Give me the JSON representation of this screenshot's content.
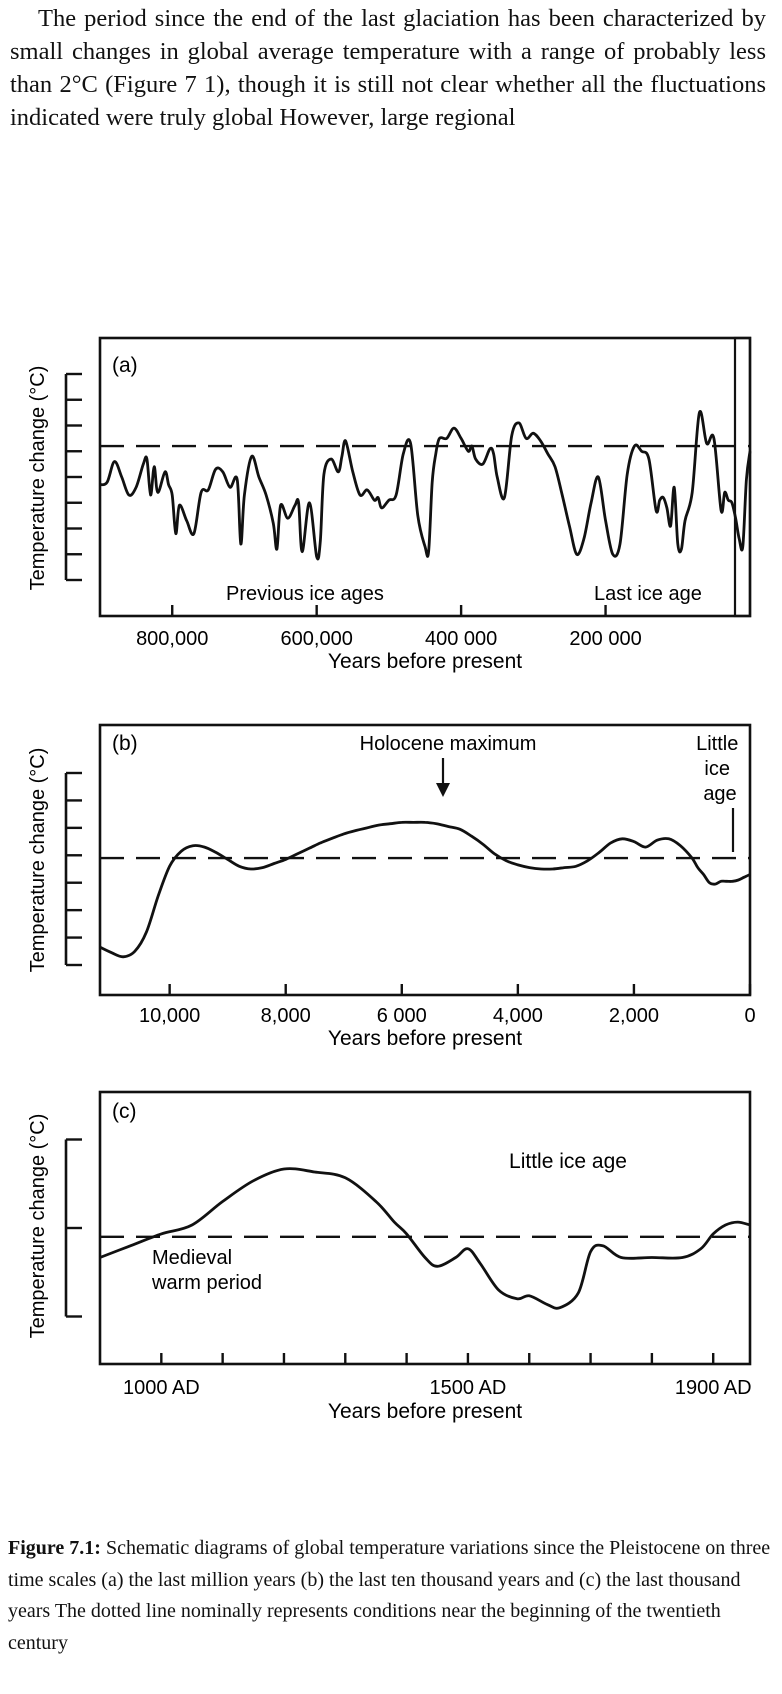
{
  "text": {
    "intro": "The period since the end of the last glaciation has been characterized by small changes in global average temperature with a range of probably less than 2°C (Figure 7 1), though it is still not clear whether all the fluctuations indicated were truly global  However, large regional",
    "caption_label": "Figure 7.1:",
    "caption_body": " Schematic diagrams of global temperature variations since the Pleistocene on three time scales  (a)  the last million years  (b)  the last ten thousand years  and  (c)  the last thousand years  The dotted line nominally represents conditions near the beginning of the twentieth century"
  },
  "chart_data": [
    {
      "type": "line",
      "panel_label": "(a)",
      "ylabel": "Temperature change (°C)",
      "xlabel": "Years before present",
      "x_reversed": true,
      "xlim": [
        900000,
        0
      ],
      "ylim": [
        0,
        8
      ],
      "y_ticks": [
        0,
        1,
        2,
        3,
        4,
        5,
        6,
        7,
        8
      ],
      "y_tick_labels_shown": false,
      "x_ticks": [
        800000,
        600000,
        400000,
        200000
      ],
      "x_tick_labels": [
        "800,000",
        "600,000",
        "400 000",
        "200 000"
      ],
      "reference_line": 5.2,
      "series_x": [
        900000,
        890000,
        880000,
        870000,
        860000,
        850000,
        840000,
        835000,
        830000,
        825000,
        820000,
        810000,
        805000,
        800000,
        795000,
        790000,
        780000,
        770000,
        760000,
        750000,
        740000,
        730000,
        720000,
        710000,
        705000,
        700000,
        690000,
        680000,
        670000,
        660000,
        655000,
        650000,
        640000,
        630000,
        625000,
        620000,
        610000,
        600000,
        595000,
        590000,
        580000,
        570000,
        565000,
        560000,
        550000,
        540000,
        530000,
        520000,
        515000,
        510000,
        500000,
        490000,
        480000,
        470000,
        460000,
        450000,
        445000,
        440000,
        435000,
        430000,
        420000,
        410000,
        400000,
        390000,
        385000,
        380000,
        370000,
        360000,
        355000,
        350000,
        340000,
        330000,
        320000,
        310000,
        300000,
        290000,
        280000,
        270000,
        260000,
        250000,
        240000,
        230000,
        220000,
        210000,
        200000,
        190000,
        180000,
        170000,
        160000,
        150000,
        140000,
        130000,
        125000,
        120000,
        115000,
        110000,
        105000,
        100000,
        95000,
        90000,
        80000,
        70000,
        60000,
        50000,
        40000,
        35000,
        30000,
        25000,
        20000,
        15000,
        10000,
        5000,
        0
      ],
      "series_y": [
        3.7,
        3.8,
        4.6,
        4.0,
        3.3,
        3.6,
        4.5,
        4.7,
        3.3,
        4.4,
        3.4,
        4.2,
        3.7,
        3.3,
        1.8,
        2.9,
        2.3,
        1.8,
        3.4,
        3.5,
        4.3,
        4.2,
        3.6,
        3.9,
        1.4,
        3.3,
        4.8,
        4.0,
        3.3,
        2.2,
        1.2,
        2.9,
        2.4,
        2.9,
        3.0,
        1.1,
        3.0,
        0.9,
        1.5,
        4.1,
        4.7,
        4.2,
        4.8,
        5.4,
        4.2,
        3.3,
        3.5,
        3.1,
        3.2,
        2.8,
        3.1,
        3.3,
        4.9,
        5.3,
        2.5,
        1.3,
        1.1,
        3.8,
        4.9,
        5.5,
        5.5,
        5.9,
        5.5,
        5.0,
        5.2,
        4.7,
        4.5,
        5.1,
        4.9,
        4.0,
        3.2,
        5.6,
        6.1,
        5.5,
        5.7,
        5.4,
        4.9,
        4.4,
        3.3,
        2.1,
        1.0,
        1.6,
        3.0,
        4.0,
        2.3,
        1.0,
        1.4,
        4.1,
        5.2,
        5.0,
        4.7,
        2.7,
        3.1,
        3.2,
        2.8,
        2.1,
        3.6,
        1.4,
        1.2,
        2.3,
        3.4,
        6.5,
        5.3,
        5.5,
        2.7,
        3.4,
        3.1,
        3.0,
        2.4,
        1.6,
        1.3,
        3.9,
        5.0
      ],
      "annotations": [
        "Previous ice ages",
        "Last ice age"
      ]
    },
    {
      "type": "line",
      "panel_label": "(b)",
      "ylabel": "Temperature change (°C)",
      "xlabel": "Years before present",
      "x_reversed": true,
      "xlim": [
        11200,
        0
      ],
      "ylim": [
        0,
        7
      ],
      "y_ticks": [
        0,
        1,
        2,
        3,
        4,
        5,
        6,
        7
      ],
      "y_tick_labels_shown": false,
      "x_ticks": [
        10000,
        8000,
        6000,
        4000,
        2000,
        0
      ],
      "x_tick_labels": [
        "10,000",
        "8,000",
        "6 000",
        "4,000",
        "2,000",
        "0"
      ],
      "reference_line": 3.9,
      "series_x": [
        11200,
        11000,
        10800,
        10600,
        10400,
        10200,
        10000,
        9800,
        9600,
        9400,
        9200,
        9000,
        8800,
        8600,
        8400,
        8200,
        8000,
        7800,
        7600,
        7400,
        7200,
        7000,
        6800,
        6600,
        6400,
        6200,
        6000,
        5800,
        5600,
        5400,
        5200,
        5000,
        4800,
        4600,
        4400,
        4200,
        4000,
        3800,
        3600,
        3400,
        3200,
        3000,
        2800,
        2600,
        2400,
        2200,
        2000,
        1800,
        1600,
        1400,
        1200,
        1000,
        900,
        800,
        700,
        600,
        500,
        400,
        300,
        200,
        100,
        0
      ],
      "series_y": [
        0.65,
        0.45,
        0.3,
        0.5,
        1.2,
        2.5,
        3.6,
        4.15,
        4.35,
        4.3,
        4.1,
        3.85,
        3.6,
        3.5,
        3.55,
        3.7,
        3.85,
        4.05,
        4.25,
        4.45,
        4.62,
        4.78,
        4.9,
        5.0,
        5.1,
        5.15,
        5.2,
        5.2,
        5.2,
        5.15,
        5.05,
        4.95,
        4.7,
        4.4,
        4.05,
        3.8,
        3.65,
        3.55,
        3.5,
        3.5,
        3.55,
        3.6,
        3.8,
        4.1,
        4.45,
        4.6,
        4.5,
        4.3,
        4.55,
        4.6,
        4.35,
        3.9,
        3.55,
        3.3,
        3.0,
        2.95,
        3.05,
        3.05,
        3.05,
        3.1,
        3.2,
        3.3
      ],
      "annotations": [
        "Holocene maximum",
        "Little ice age"
      ]
    },
    {
      "type": "line",
      "panel_label": "(c)",
      "ylabel": "Temperature change (°C)",
      "xlabel": "Years before present",
      "xlim": [
        900,
        1960
      ],
      "ylim": [
        0,
        8
      ],
      "y_ticks": [
        1,
        4,
        7
      ],
      "y_tick_labels_shown": false,
      "x_ticks": [
        1000,
        1100,
        1200,
        1300,
        1400,
        1500,
        1600,
        1700,
        1800,
        1900
      ],
      "x_tick_labels": [
        "1000 AD",
        "1500 AD",
        "1900 AD"
      ],
      "x_tick_label_values": [
        1000,
        1500,
        1900
      ],
      "reference_line": 3.7,
      "series_x": [
        900,
        950,
        1000,
        1050,
        1100,
        1150,
        1200,
        1250,
        1300,
        1350,
        1380,
        1400,
        1430,
        1450,
        1480,
        1500,
        1520,
        1550,
        1580,
        1600,
        1630,
        1650,
        1680,
        1700,
        1720,
        1750,
        1800,
        1850,
        1880,
        1900,
        1920,
        1940,
        1960
      ],
      "series_y": [
        3.0,
        3.4,
        3.8,
        4.1,
        4.9,
        5.6,
        6.0,
        5.9,
        5.7,
        4.9,
        4.2,
        3.8,
        3.0,
        2.7,
        3.0,
        3.3,
        2.8,
        1.9,
        1.6,
        1.7,
        1.4,
        1.3,
        1.8,
        3.2,
        3.4,
        3.0,
        3.0,
        3.0,
        3.3,
        3.8,
        4.1,
        4.2,
        4.1
      ],
      "annotations": [
        "Little ice age",
        "Medieval",
        "warm period"
      ]
    }
  ]
}
